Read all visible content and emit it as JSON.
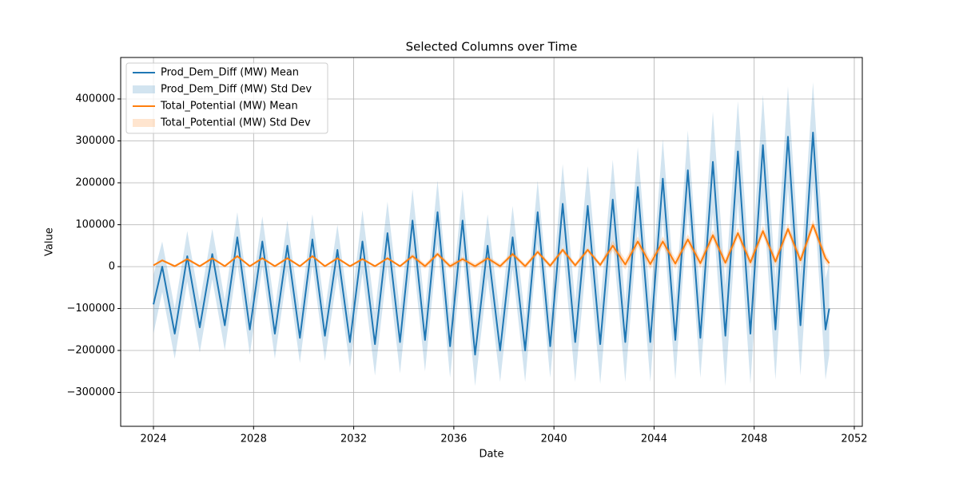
{
  "chart_data": {
    "type": "line",
    "title": "Selected Columns over Time",
    "x_label": "Date",
    "y_label": "Value",
    "x": [
      2024,
      2024.35,
      2024.85,
      2025.35,
      2025.85,
      2026.35,
      2026.85,
      2027.35,
      2027.85,
      2028.35,
      2028.85,
      2029.35,
      2029.85,
      2030.35,
      2030.85,
      2031.35,
      2031.85,
      2032.35,
      2032.85,
      2033.35,
      2033.85,
      2034.35,
      2034.85,
      2035.35,
      2035.85,
      2036.35,
      2036.85,
      2037.35,
      2037.85,
      2038.35,
      2038.85,
      2039.35,
      2039.85,
      2040.35,
      2040.85,
      2041.35,
      2041.85,
      2042.35,
      2042.85,
      2043.35,
      2043.85,
      2044.35,
      2044.85,
      2045.35,
      2045.85,
      2046.35,
      2046.85,
      2047.35,
      2047.85,
      2048.35,
      2048.85,
      2049.35,
      2049.85,
      2050.35,
      2050.85,
      2051
    ],
    "series": [
      {
        "name": "Prod_Dem_Diff (MW) Mean",
        "band_name": "Prod_Dem_Diff (MW) Std Dev",
        "color": "#1f77b4",
        "band_opacity": 0.2,
        "values": [
          -90000,
          0,
          -160000,
          25000,
          -145000,
          30000,
          -140000,
          70000,
          -150000,
          60000,
          -160000,
          50000,
          -170000,
          65000,
          -165000,
          40000,
          -180000,
          60000,
          -185000,
          80000,
          -180000,
          110000,
          -175000,
          130000,
          -190000,
          110000,
          -210000,
          50000,
          -200000,
          70000,
          -200000,
          130000,
          -190000,
          150000,
          -180000,
          145000,
          -185000,
          160000,
          -180000,
          190000,
          -180000,
          210000,
          -175000,
          230000,
          -170000,
          250000,
          -165000,
          275000,
          -160000,
          290000,
          -150000,
          310000,
          -140000,
          320000,
          -150000,
          -100000
        ],
        "std": [
          70000,
          60000,
          60000,
          60000,
          60000,
          60000,
          60000,
          60000,
          60000,
          60000,
          60000,
          60000,
          60000,
          60000,
          60000,
          60000,
          60000,
          75000,
          75000,
          75000,
          75000,
          75000,
          75000,
          75000,
          75000,
          75000,
          75000,
          75000,
          75000,
          75000,
          75000,
          75000,
          75000,
          95000,
          95000,
          95000,
          95000,
          95000,
          95000,
          95000,
          95000,
          95000,
          95000,
          95000,
          95000,
          120000,
          120000,
          120000,
          120000,
          120000,
          120000,
          120000,
          120000,
          120000,
          120000,
          110000
        ]
      },
      {
        "name": "Total_Potential (MW) Mean",
        "band_name": "Total_Potential (MW) Std Dev",
        "color": "#ff7f0e",
        "band_opacity": 0.2,
        "values": [
          3000,
          15000,
          1000,
          18000,
          1000,
          20000,
          1000,
          25000,
          1000,
          20000,
          1000,
          20000,
          1000,
          25000,
          1000,
          20000,
          1000,
          18000,
          1000,
          20000,
          1000,
          25000,
          1000,
          30000,
          1000,
          18000,
          1000,
          20000,
          1000,
          30000,
          1000,
          35000,
          2000,
          40000,
          3000,
          40000,
          4000,
          50000,
          5000,
          60000,
          6000,
          60000,
          7000,
          65000,
          8000,
          75000,
          9000,
          80000,
          10000,
          85000,
          12000,
          90000,
          15000,
          100000,
          20000,
          8000
        ],
        "std": [
          2000,
          3000,
          3000,
          3000,
          3000,
          3000,
          3000,
          3000,
          3000,
          3000,
          3000,
          3000,
          3000,
          3000,
          3000,
          3000,
          3000,
          3000,
          3000,
          3000,
          3000,
          6000,
          6000,
          6000,
          6000,
          6000,
          6000,
          6000,
          6000,
          6000,
          6000,
          6000,
          6000,
          6000,
          6000,
          6000,
          6000,
          12000,
          12000,
          12000,
          12000,
          12000,
          12000,
          12000,
          12000,
          12000,
          12000,
          12000,
          12000,
          12000,
          12000,
          12000,
          12000,
          12000,
          12000,
          8000
        ]
      }
    ],
    "xlim": [
      2022.69,
      2052.32
    ],
    "xticks": [
      2024,
      2028,
      2032,
      2036,
      2040,
      2044,
      2048,
      2052
    ],
    "ylim": [
      -381000,
      499000
    ],
    "yticks": [
      {
        "value": -300000,
        "label": "−300000"
      },
      {
        "value": -200000,
        "label": "−200000"
      },
      {
        "value": -100000,
        "label": "−100000"
      },
      0,
      100000,
      200000,
      300000,
      400000
    ],
    "grid": true,
    "legend": "upper left"
  }
}
